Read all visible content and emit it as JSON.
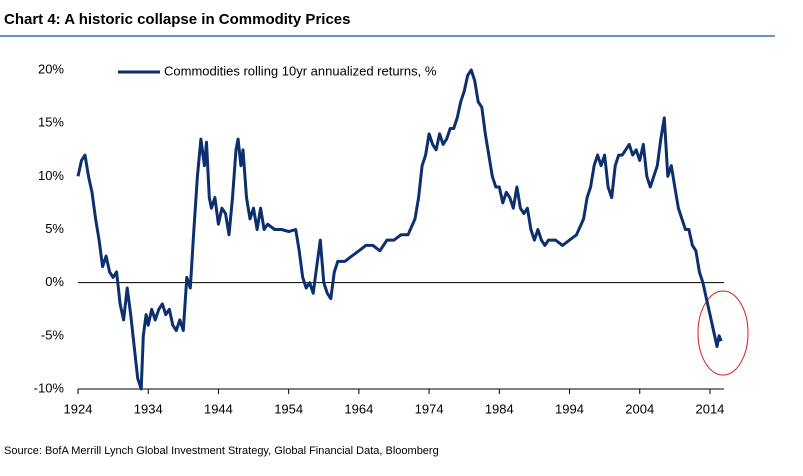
{
  "chart_data": {
    "type": "line",
    "title": "Chart 4: A historic collapse in Commodity Prices",
    "source": "Source: BofA Merrill Lynch Global Investment Strategy, Global Financial Data, Bloomberg",
    "xlim": [
      1924,
      2016
    ],
    "xticks": [
      1924,
      1934,
      1944,
      1954,
      1964,
      1974,
      1984,
      1994,
      2004,
      2014
    ],
    "ylim": [
      -10,
      20
    ],
    "yticks": [
      {
        "value": -10,
        "label": "-10%"
      },
      {
        "value": -5,
        "label": "-5%"
      },
      {
        "value": 0,
        "label": "0%"
      },
      {
        "value": 5,
        "label": "5%"
      },
      {
        "value": 10,
        "label": "10%"
      },
      {
        "value": 15,
        "label": "15%"
      },
      {
        "value": 20,
        "label": "20%"
      }
    ],
    "legend": "top-left",
    "series": [
      {
        "name": "Commodities rolling 10yr annualized returns, %",
        "color": "#0d2f6e",
        "x": [
          1924,
          1924.5,
          1925,
          1925.5,
          1926,
          1926.5,
          1927,
          1927.5,
          1928,
          1928.5,
          1929,
          1929.5,
          1930,
          1930.5,
          1931,
          1931.5,
          1932,
          1932.5,
          1933,
          1933.3,
          1933.7,
          1934,
          1934.5,
          1935,
          1935.5,
          1936,
          1936.5,
          1937,
          1937.5,
          1938,
          1938.5,
          1939,
          1939.5,
          1940,
          1940.5,
          1941,
          1941.5,
          1942,
          1942.3,
          1942.7,
          1943,
          1943.5,
          1944,
          1944.5,
          1945,
          1945.5,
          1946,
          1946.5,
          1946.8,
          1947.2,
          1947.5,
          1948,
          1948.5,
          1949,
          1949.5,
          1950,
          1950.5,
          1951,
          1952,
          1953,
          1954,
          1955,
          1955.5,
          1956,
          1956.5,
          1957,
          1957.5,
          1958,
          1958.5,
          1959,
          1959.5,
          1960,
          1960.5,
          1961,
          1962,
          1963,
          1964,
          1965,
          1966,
          1967,
          1968,
          1969,
          1970,
          1971,
          1972,
          1972.5,
          1973,
          1973.5,
          1974,
          1974.5,
          1975,
          1975.5,
          1976,
          1976.5,
          1977,
          1977.5,
          1978,
          1978.5,
          1979,
          1979.5,
          1980,
          1980.5,
          1981,
          1981.5,
          1982,
          1982.5,
          1983,
          1983.5,
          1984,
          1984.5,
          1985,
          1985.5,
          1986,
          1986.5,
          1987,
          1987.5,
          1988,
          1988.5,
          1989,
          1989.5,
          1990,
          1990.5,
          1991,
          1992,
          1993,
          1994,
          1995,
          1996,
          1996.5,
          1997,
          1997.5,
          1998,
          1998.5,
          1999,
          1999.5,
          2000,
          2000.5,
          2001,
          2001.5,
          2002,
          2002.5,
          2003,
          2003.5,
          2004,
          2004.5,
          2005,
          2005.5,
          2006,
          2006.5,
          2007,
          2007.5,
          2008,
          2008.5,
          2009,
          2009.5,
          2010,
          2010.5,
          2011,
          2011.5,
          2012,
          2012.5,
          2013,
          2013.5,
          2014,
          2014.5,
          2015,
          2015.3,
          2015.6
        ],
        "values": [
          10,
          11.5,
          12,
          10,
          8.5,
          6,
          4,
          1.5,
          2.5,
          1,
          0.5,
          1,
          -2,
          -3.5,
          -0.5,
          -3,
          -6,
          -9,
          -10,
          -5,
          -3,
          -4,
          -2.5,
          -3.5,
          -2.5,
          -2,
          -3,
          -2.5,
          -4,
          -4.5,
          -3.5,
          -4.5,
          0.5,
          -0.5,
          5,
          10,
          13.5,
          11,
          13.2,
          8,
          7,
          8,
          5.5,
          7,
          6.5,
          4.5,
          8,
          12.5,
          13.5,
          11,
          12.5,
          8,
          6,
          7,
          5,
          7,
          5,
          5.5,
          5,
          5,
          4.8,
          5,
          3,
          0.5,
          -0.5,
          0,
          -1,
          1.5,
          4,
          0,
          -1,
          -1.5,
          1,
          2,
          2,
          2.5,
          3,
          3.5,
          3.5,
          3,
          4,
          4,
          4.5,
          4.5,
          6,
          8,
          11,
          12,
          14,
          13,
          12.5,
          14,
          13,
          13.5,
          14.5,
          14.5,
          15.5,
          17,
          18,
          19.5,
          20,
          19,
          17,
          16.5,
          14,
          12,
          10,
          9,
          9,
          7.5,
          8.5,
          8,
          7,
          9,
          7,
          6.5,
          7,
          5,
          4,
          5,
          4,
          3.5,
          4,
          4,
          3.5,
          4,
          4.5,
          6,
          8,
          9,
          11,
          12,
          11,
          12,
          9,
          8,
          11,
          12,
          12,
          12.5,
          13,
          12,
          12.5,
          11.5,
          13,
          10,
          9,
          10,
          11,
          13.5,
          15.5,
          10,
          11,
          9,
          7,
          6,
          5,
          5,
          3.5,
          3,
          1,
          0,
          -1.5,
          -3,
          -4.5,
          -6,
          -5,
          -5.5
        ]
      }
    ]
  }
}
